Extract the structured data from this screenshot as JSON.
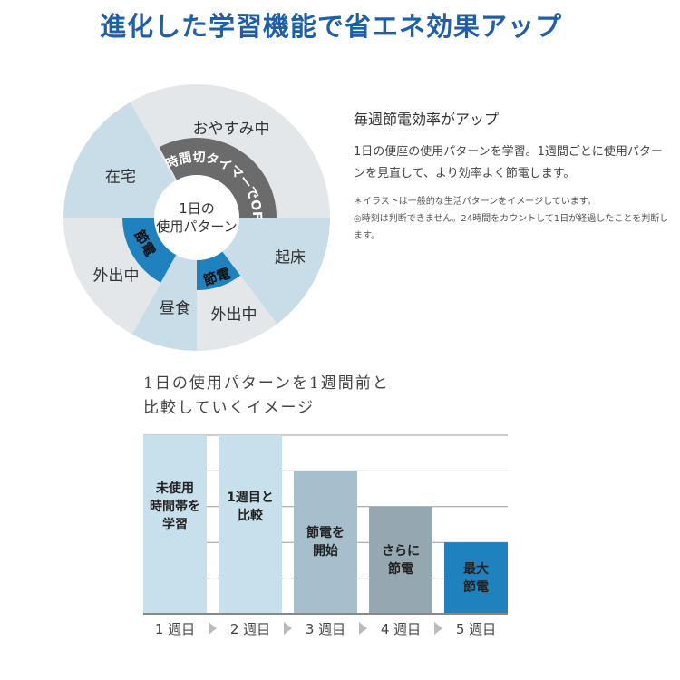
{
  "title": "進化した学習機能で省エネ効果アップ",
  "colors": {
    "title": "#1f5fa8",
    "light_gray": "#e3e7ea",
    "light_blue": "#c9dde8",
    "timer_band": "#6b6b6b",
    "save_band": "#1f82bf"
  },
  "cycle": {
    "center": [
      "1日の",
      "使用パターン"
    ],
    "segments": [
      {
        "label": "おやすみ中"
      },
      {
        "label": "起床"
      },
      {
        "label": "外出中"
      },
      {
        "label": "昼食"
      },
      {
        "label": "外出中"
      },
      {
        "label": "在宅"
      }
    ],
    "timer_band": "8時間切タイマーでOFF",
    "save_bands": [
      "節電",
      "節電"
    ]
  },
  "info": {
    "heading": "毎週節電効率がアップ",
    "body": "1日の便座の使用パターンを学習。1週間ごとに使用パターンを見直して、より効率よく節電します。",
    "note_1": "＊イラストは一般的な生活パターンをイメージしています。",
    "note_2": "◎時刻は判断できません。24時間をカウントして1日が経過したことを判断します。"
  },
  "chart_data": {
    "type": "bar",
    "title": [
      "1日の使用パターンを1週間前と",
      "比較していくイメージ"
    ],
    "categories": [
      "1 週目",
      "2 週目",
      "3 週目",
      "4 週目",
      "5 週目"
    ],
    "values": [
      5,
      5,
      4,
      3,
      2
    ],
    "ylim": [
      0,
      5
    ],
    "grid": true,
    "bar_labels": [
      [
        "未使用",
        "時間帯を",
        "学習"
      ],
      [
        "1週目と",
        "比較"
      ],
      [
        "節電を",
        "開始"
      ],
      [
        "さらに",
        "節電"
      ],
      [
        "最大",
        "節電"
      ]
    ],
    "colors": [
      "#c8dfec",
      "#c8dfec",
      "#a7bfcd",
      "#95a7b1",
      "#1f82bf"
    ]
  }
}
